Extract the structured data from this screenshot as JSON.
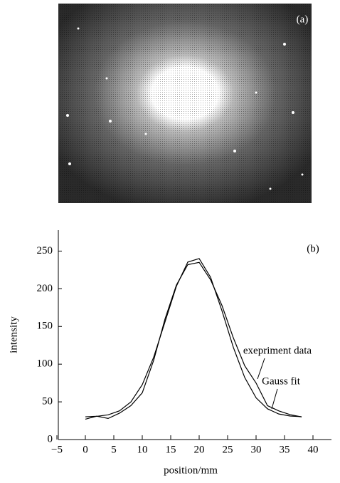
{
  "image_panel": {
    "label": "(a)"
  },
  "chart_data": {
    "type": "line",
    "panel_label": "(b)",
    "xlabel": "position/mm",
    "ylabel": "intensity",
    "x": [
      0,
      2,
      4,
      6,
      8,
      10,
      12,
      14,
      16,
      18,
      20,
      22,
      24,
      26,
      28,
      30,
      32,
      34,
      36,
      38
    ],
    "series": [
      {
        "name": "exepriment data",
        "color": "#000000",
        "values": [
          27,
          31,
          28,
          35,
          45,
          62,
          105,
          160,
          205,
          232,
          235,
          212,
          178,
          135,
          98,
          75,
          45,
          38,
          33,
          30
        ]
      },
      {
        "name": "Gauss fit",
        "color": "#000000",
        "values": [
          30.2,
          30.8,
          32.8,
          38.1,
          49.9,
          72.8,
          109.1,
          156.1,
          203.4,
          235.4,
          240.1,
          215.3,
          171.0,
          122.4,
          82.4,
          55.4,
          40.8,
          33.9,
          31.2,
          30.3
        ]
      }
    ],
    "xlim": [
      -5,
      43
    ],
    "ylim": [
      0,
      275
    ],
    "xticks": [
      {
        "value": -5,
        "label": "−5"
      },
      0,
      5,
      10,
      15,
      20,
      25,
      30,
      35,
      40
    ],
    "yticks": [
      0,
      50,
      100,
      150,
      200,
      250
    ],
    "grid": false
  }
}
